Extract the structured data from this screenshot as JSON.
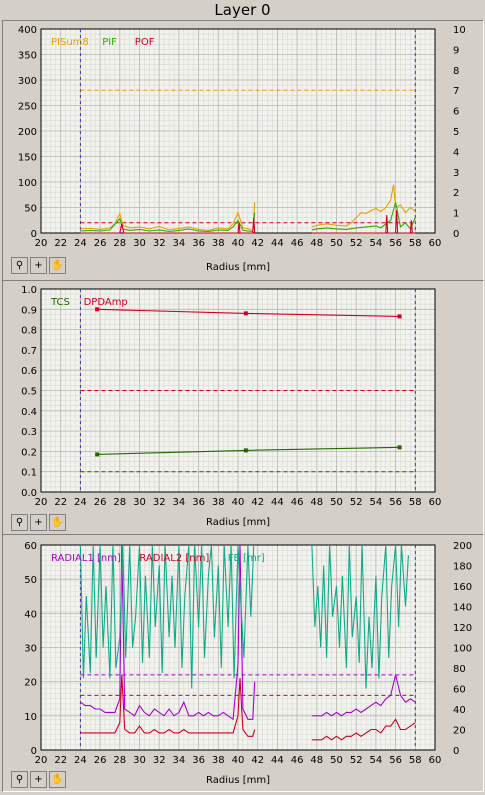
{
  "window_title": "Layer 0",
  "toolbar": {
    "zoom_icon": "zoom-icon",
    "crosshair_icon": "crosshair-icon",
    "pan_icon": "hand-icon"
  },
  "chart_data": [
    {
      "type": "line",
      "xlabel": "Radius [mm]",
      "xlim": [
        20,
        60
      ],
      "xticks": [
        20,
        22,
        24,
        26,
        28,
        30,
        32,
        34,
        36,
        38,
        40,
        42,
        44,
        46,
        48,
        50,
        52,
        54,
        56,
        58,
        60
      ],
      "ylim": [
        0,
        400
      ],
      "yticks": [
        0,
        50,
        100,
        150,
        200,
        250,
        300,
        350,
        400
      ],
      "y2lim": [
        0,
        10
      ],
      "y2ticks": [
        0,
        1,
        2,
        3,
        4,
        5,
        6,
        7,
        8,
        9,
        10
      ],
      "grid": true,
      "legend_position": "top-left",
      "vlines": [
        24,
        58
      ],
      "colors": {
        "PISum8": "#e8a000",
        "PIF": "#33aa00",
        "POF": "#cc0022"
      },
      "hlines": [
        {
          "y": 280,
          "color": "#e8a000"
        },
        {
          "y": 20,
          "color": "#cc0022"
        }
      ],
      "series": [
        {
          "name": "PISum8",
          "color": "#e8a000",
          "segments": [
            {
              "x": [
                24,
                25,
                26,
                27,
                27.5,
                28,
                28.3,
                29,
                30,
                31,
                32,
                33,
                34,
                35,
                36,
                37,
                38,
                39,
                39.5,
                40,
                40.5,
                41,
                41.5,
                41.7
              ],
              "y": [
                8,
                9,
                7,
                10,
                18,
                38,
                15,
                10,
                12,
                8,
                13,
                6,
                9,
                12,
                7,
                5,
                10,
                8,
                18,
                40,
                10,
                8,
                5,
                60
              ]
            },
            {
              "x": [
                47.5,
                48,
                49,
                50,
                51,
                51.5,
                52,
                52.5,
                53,
                53.5,
                54,
                54.5,
                55,
                55.5,
                55.8,
                56,
                56.5,
                57,
                57.5,
                58
              ],
              "y": [
                12,
                15,
                18,
                15,
                14,
                20,
                30,
                40,
                38,
                44,
                48,
                42,
                50,
                65,
                95,
                50,
                55,
                40,
                50,
                42
              ]
            }
          ]
        },
        {
          "name": "PIF",
          "color": "#33aa00",
          "segments": [
            {
              "x": [
                24,
                25,
                26,
                27,
                28,
                28.3,
                29,
                30,
                31,
                32,
                33,
                34,
                35,
                36,
                37,
                38,
                39,
                39.5,
                40,
                40.5,
                41,
                41.5,
                41.7
              ],
              "y": [
                4,
                5,
                4,
                6,
                28,
                8,
                5,
                7,
                4,
                6,
                3,
                5,
                8,
                4,
                3,
                6,
                5,
                12,
                25,
                5,
                4,
                3,
                40
              ]
            },
            {
              "x": [
                47.5,
                48,
                49,
                50,
                51,
                52,
                53,
                54,
                54.5,
                55,
                55.5,
                56,
                56.5,
                57,
                57.5,
                58
              ],
              "y": [
                6,
                8,
                10,
                8,
                7,
                10,
                12,
                14,
                10,
                18,
                25,
                60,
                12,
                20,
                8,
                30
              ]
            }
          ]
        },
        {
          "name": "POF",
          "color": "#cc0022",
          "segments": [
            {
              "x": [
                24,
                28,
                28.2,
                28.4,
                30,
                40,
                40.1,
                40.2,
                41.5,
                41.6,
                41.7
              ],
              "y": [
                0,
                0,
                18,
                0,
                0,
                0,
                20,
                0,
                0,
                30,
                0
              ]
            },
            {
              "x": [
                47.5,
                55,
                55.1,
                55.2,
                56,
                56.1,
                56.2,
                57.5,
                57.6,
                57.7,
                58
              ],
              "y": [
                0,
                0,
                35,
                0,
                0,
                45,
                0,
                0,
                25,
                0,
                0
              ]
            }
          ]
        }
      ]
    },
    {
      "type": "line",
      "xlabel": "Radius [mm]",
      "xlim": [
        20,
        60
      ],
      "xticks": [
        20,
        22,
        24,
        26,
        28,
        30,
        32,
        34,
        36,
        38,
        40,
        42,
        44,
        46,
        48,
        50,
        52,
        54,
        56,
        58,
        60
      ],
      "ylim": [
        0,
        1.0
      ],
      "yticks": [
        0,
        0.1,
        0.2,
        0.3,
        0.4,
        0.5,
        0.6,
        0.7,
        0.8,
        0.9,
        1.0
      ],
      "ytick_labels": [
        "0.0",
        "0.1",
        "0.2",
        "0.3",
        "0.4",
        "0.5",
        "0.6",
        "0.7",
        "0.8",
        "0.9",
        "1.0"
      ],
      "grid": true,
      "legend_position": "top-left",
      "vlines": [
        24,
        58
      ],
      "hlines": [
        {
          "y": 0.5,
          "color": "#cc0022"
        },
        {
          "y": 0.1,
          "color": "#226600"
        }
      ],
      "series": [
        {
          "name": "TCS",
          "color": "#226600",
          "x": [
            25.7,
            40.8,
            56.4
          ],
          "y": [
            0.185,
            0.205,
            0.22
          ]
        },
        {
          "name": "DPDAmp",
          "color": "#cc0022",
          "x": [
            25.7,
            40.8,
            56.4
          ],
          "y": [
            0.9,
            0.88,
            0.865
          ]
        }
      ]
    },
    {
      "type": "line",
      "xlabel": "Radius [mm]",
      "xlim": [
        20,
        60
      ],
      "xticks": [
        20,
        22,
        24,
        26,
        28,
        30,
        32,
        34,
        36,
        38,
        40,
        42,
        44,
        46,
        48,
        50,
        52,
        54,
        56,
        58,
        60
      ],
      "ylim": [
        0,
        60
      ],
      "yticks": [
        0,
        10,
        20,
        30,
        40,
        50,
        60
      ],
      "y2lim": [
        0,
        200
      ],
      "y2ticks": [
        0,
        20,
        40,
        60,
        80,
        100,
        120,
        140,
        160,
        180,
        200
      ],
      "grid": true,
      "legend_position": "top-left",
      "vlines": [
        24,
        58
      ],
      "hlines": [
        {
          "y": 22,
          "color": "#aa00cc"
        },
        {
          "y": 16,
          "color": "#cc0022"
        }
      ],
      "series": [
        {
          "name": "RADIAL1 [nm]",
          "color": "#aa00cc",
          "segments": [
            {
              "x": [
                24,
                24.5,
                25,
                25.5,
                26,
                26.5,
                27,
                27.5,
                28,
                28.2,
                28.5,
                29,
                29.5,
                30,
                30.5,
                31,
                31.5,
                32,
                32.5,
                33,
                33.5,
                34,
                34.5,
                35,
                35.5,
                36,
                36.5,
                37,
                37.5,
                38,
                38.5,
                39,
                39.5,
                40,
                40.2,
                40.5,
                41,
                41.5,
                41.7
              ],
              "y": [
                14,
                13,
                13,
                12,
                12,
                11,
                11,
                11,
                15,
                60,
                12,
                11,
                10,
                13,
                11,
                10,
                12,
                11,
                10,
                12,
                10,
                11,
                14,
                10,
                10,
                11,
                10,
                11,
                10,
                10,
                11,
                10,
                9,
                25,
                60,
                12,
                9,
                9,
                20
              ]
            },
            {
              "x": [
                47.5,
                48,
                48.5,
                49,
                49.5,
                50,
                50.5,
                51,
                51.5,
                52,
                52.5,
                53,
                53.5,
                54,
                54.5,
                55,
                55.5,
                56,
                56.5,
                57,
                57.5,
                58
              ],
              "y": [
                10,
                10,
                10,
                11,
                10,
                11,
                10,
                11,
                11,
                12,
                11,
                12,
                13,
                14,
                13,
                15,
                16,
                22,
                16,
                14,
                15,
                14
              ]
            }
          ]
        },
        {
          "name": "RADIAL2 [nm]",
          "color": "#cc0022",
          "segments": [
            {
              "x": [
                24,
                24.5,
                25,
                25.5,
                26,
                26.5,
                27,
                27.5,
                28,
                28.2,
                28.5,
                29,
                29.5,
                30,
                30.5,
                31,
                31.5,
                32,
                32.5,
                33,
                33.5,
                34,
                34.5,
                35,
                35.5,
                36,
                36.5,
                37,
                37.5,
                38,
                38.5,
                39,
                39.5,
                40,
                40.2,
                40.5,
                41,
                41.5,
                41.7
              ],
              "y": [
                5,
                5,
                5,
                5,
                5,
                5,
                5,
                5,
                8,
                22,
                6,
                5,
                5,
                7,
                5,
                5,
                6,
                5,
                5,
                6,
                5,
                5,
                6,
                5,
                5,
                5,
                5,
                5,
                5,
                5,
                5,
                5,
                5,
                10,
                21,
                6,
                4,
                4,
                6
              ]
            },
            {
              "x": [
                47.5,
                48,
                48.5,
                49,
                49.5,
                50,
                50.5,
                51,
                51.5,
                52,
                52.5,
                53,
                53.5,
                54,
                54.5,
                55,
                55.5,
                56,
                56.5,
                57,
                57.5,
                58
              ],
              "y": [
                3,
                3,
                3,
                4,
                3,
                4,
                3,
                4,
                4,
                5,
                4,
                5,
                6,
                6,
                5,
                7,
                7,
                9,
                6,
                6,
                7,
                8
              ]
            }
          ]
        },
        {
          "name": "FE [mr]",
          "color": "#11aa88",
          "axis": "y2",
          "segments": [
            {
              "x": [
                24,
                24.3,
                24.6,
                25,
                25.3,
                25.6,
                26,
                26.3,
                26.6,
                27,
                27.3,
                27.6,
                28,
                28.3,
                28.6,
                29,
                29.3,
                29.6,
                30,
                30.3,
                30.6,
                31,
                31.3,
                31.6,
                32,
                32.3,
                32.6,
                33,
                33.3,
                33.6,
                34,
                34.3,
                34.6,
                35,
                35.3,
                35.6,
                36,
                36.3,
                36.6,
                37,
                37.3,
                37.6,
                38,
                38.3,
                38.6,
                39,
                39.3,
                39.6,
                40,
                40.3,
                40.6,
                41,
                41.3,
                41.6
              ],
              "y": [
                200,
                70,
                150,
                75,
                200,
                90,
                200,
                100,
                160,
                70,
                200,
                80,
                110,
                200,
                90,
                200,
                100,
                130,
                200,
                85,
                170,
                90,
                200,
                120,
                180,
                75,
                200,
                110,
                170,
                100,
                200,
                80,
                150,
                200,
                60,
                200,
                120,
                200,
                90,
                170,
                200,
                110,
                180,
                80,
                200,
                120,
                200,
                70,
                200,
                140,
                90,
                200,
                130,
                200
              ]
            },
            {
              "x": [
                47.5,
                47.8,
                48.1,
                48.4,
                48.7,
                49,
                49.3,
                49.6,
                50,
                50.3,
                50.6,
                51,
                51.3,
                51.6,
                52,
                52.3,
                52.6,
                53,
                53.3,
                53.6,
                54,
                54.3,
                54.6,
                55,
                55.3,
                55.6,
                56,
                56.3,
                56.6,
                57,
                57.3
              ],
              "y": [
                200,
                120,
                160,
                100,
                180,
                90,
                200,
                130,
                160,
                100,
                170,
                80,
                200,
                110,
                150,
                85,
                200,
                60,
                130,
                80,
                170,
                70,
                150,
                200,
                90,
                160,
                200,
                120,
                200,
                140,
                190
              ]
            }
          ]
        }
      ]
    }
  ]
}
